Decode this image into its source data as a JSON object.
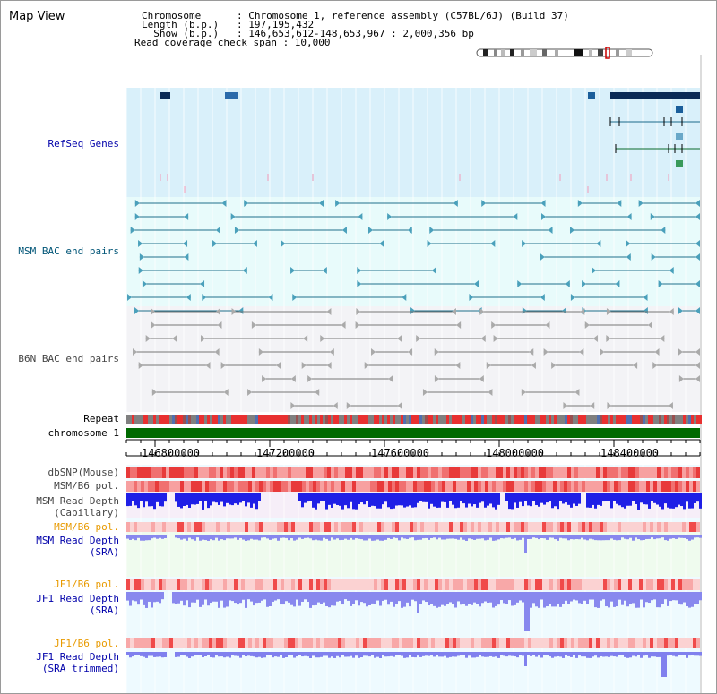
{
  "title": "Map View",
  "header": {
    "line1_label": "Chromosome      ",
    "line1_value": ": Chromosome 1, reference assembly (C57BL/6J) (Build 37)",
    "line2_label": "Length (b.p.)   ",
    "line2_value": ": 197,195,432",
    "line3_label": "  Show (b.p.)   ",
    "line3_value": ": 146,653,612-148,653,967 : 2,000,356 bp",
    "line4": "Read coverage check span : 10,000"
  },
  "tracks": {
    "refseq": "RefSeq Genes",
    "msm_bac": "MSM BAC end pairs",
    "b6n_bac": "B6N BAC end pairs",
    "repeat": "Repeat",
    "chromosome": "chromosome 1",
    "dbsnp": "dbSNP(Mouse)",
    "msm_b6_pol1": "MSM/B6 pol.",
    "msm_depth_cap_1": "MSM Read Depth",
    "msm_depth_cap_2": "(Capillary)",
    "msm_b6_pol2": "MSM/B6 pol.",
    "msm_depth_sra_1": "MSM Read Depth",
    "msm_depth_sra_2": "(SRA)",
    "jf1_b6_pol1": "JF1/B6 pol.",
    "jf1_depth_sra_1": "JF1 Read Depth",
    "jf1_depth_sra_2": "(SRA)",
    "jf1_b6_pol2": "JF1/B6 pol.",
    "jf1_depth_trim_1": "JF1 Read Depth",
    "jf1_depth_trim_2": "(SRA trimmed)"
  },
  "axis": {
    "ticks": [
      "146800000",
      "147200000",
      "147600000",
      "148000000",
      "148400000"
    ]
  },
  "colors": {
    "refseq_bg": "#d9f0fa",
    "bac_bg": "#e8fbfb",
    "b6n_bg": "#f3f3f6",
    "chromosome_bar": "#006a00",
    "depth_blue": "#1f1fe6",
    "depth_light": "#8888ee"
  }
}
